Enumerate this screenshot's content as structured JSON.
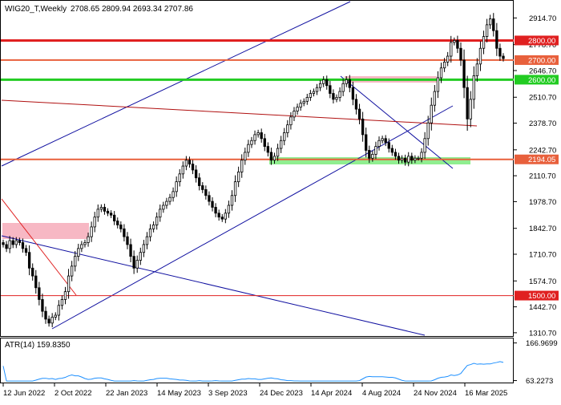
{
  "chart_data": {
    "type": "candlestick",
    "symbol": "WIG20_T",
    "timeframe": "Weekly",
    "ohlc_header": {
      "open": "2708.65",
      "high": "2809.94",
      "low": "2693.34",
      "close": "2707.86"
    },
    "y_ticks": [
      "2914.70",
      "2778.70",
      "2646.70",
      "2510.70",
      "2378.70",
      "2242.70",
      "2110.70",
      "1978.70",
      "1842.70",
      "1710.70",
      "1574.70",
      "1442.70",
      "1310.70"
    ],
    "x_ticks": [
      "12 Jun 2022",
      "2 Oct 2022",
      "22 Jan 2023",
      "14 May 2023",
      "3 Sep 2023",
      "24 Dec 2023",
      "14 Apr 2024",
      "4 Aug 2024",
      "24 Nov 2024",
      "16 Mar 2025"
    ],
    "ylim": [
      1298,
      2998
    ],
    "levels": [
      {
        "value": 2800.0,
        "label": "2800.00",
        "color": "#e02020"
      },
      {
        "value": 2700.0,
        "label": "2700.00",
        "color": "#e8603c"
      },
      {
        "value": 2600.0,
        "label": "2600.00",
        "color": "#22cc22"
      },
      {
        "value": 2194.05,
        "label": "2194.05",
        "color": "#e8603c"
      },
      {
        "value": 1500.0,
        "label": "1500.00",
        "color": "#e02020"
      }
    ],
    "indicator": {
      "name": "ATR(14)",
      "value": "159.8350",
      "y_ticks": [
        "166.9699",
        "63.2273"
      ],
      "ylim": [
        60,
        175
      ],
      "color": "#1e90ff"
    },
    "close_series": [
      1760,
      1740,
      1780,
      1760,
      1780,
      1770,
      1740,
      1720,
      1640,
      1600,
      1540,
      1480,
      1420,
      1380,
      1360,
      1390,
      1400,
      1450,
      1480,
      1520,
      1600,
      1650,
      1700,
      1740,
      1760,
      1770,
      1800,
      1850,
      1900,
      1940,
      1950,
      1930,
      1920,
      1910,
      1880,
      1860,
      1840,
      1800,
      1760,
      1700,
      1640,
      1680,
      1720,
      1760,
      1800,
      1840,
      1860,
      1900,
      1940,
      1960,
      1980,
      2000,
      2030,
      2080,
      2120,
      2160,
      2190,
      2170,
      2140,
      2100,
      2060,
      2040,
      2010,
      1980,
      1950,
      1920,
      1900,
      1890,
      1920,
      1960,
      2010,
      2080,
      2130,
      2190,
      2230,
      2270,
      2290,
      2320,
      2330,
      2300,
      2260,
      2230,
      2190,
      2210,
      2250,
      2290,
      2330,
      2370,
      2410,
      2440,
      2460,
      2480,
      2490,
      2510,
      2530,
      2540,
      2560,
      2580,
      2600,
      2570,
      2530,
      2500,
      2510,
      2540,
      2580,
      2600,
      2560,
      2500,
      2450,
      2400,
      2320,
      2240,
      2200,
      2220,
      2260,
      2290,
      2300,
      2280,
      2250,
      2230,
      2210,
      2190,
      2200,
      2180,
      2210,
      2190,
      2200,
      2200,
      2230,
      2300,
      2380,
      2470,
      2540,
      2610,
      2660,
      2690,
      2720,
      2790,
      2800,
      2760,
      2700,
      2560,
      2400,
      2500,
      2620,
      2680,
      2760,
      2820,
      2880,
      2910,
      2850,
      2760,
      2720,
      2708
    ]
  }
}
